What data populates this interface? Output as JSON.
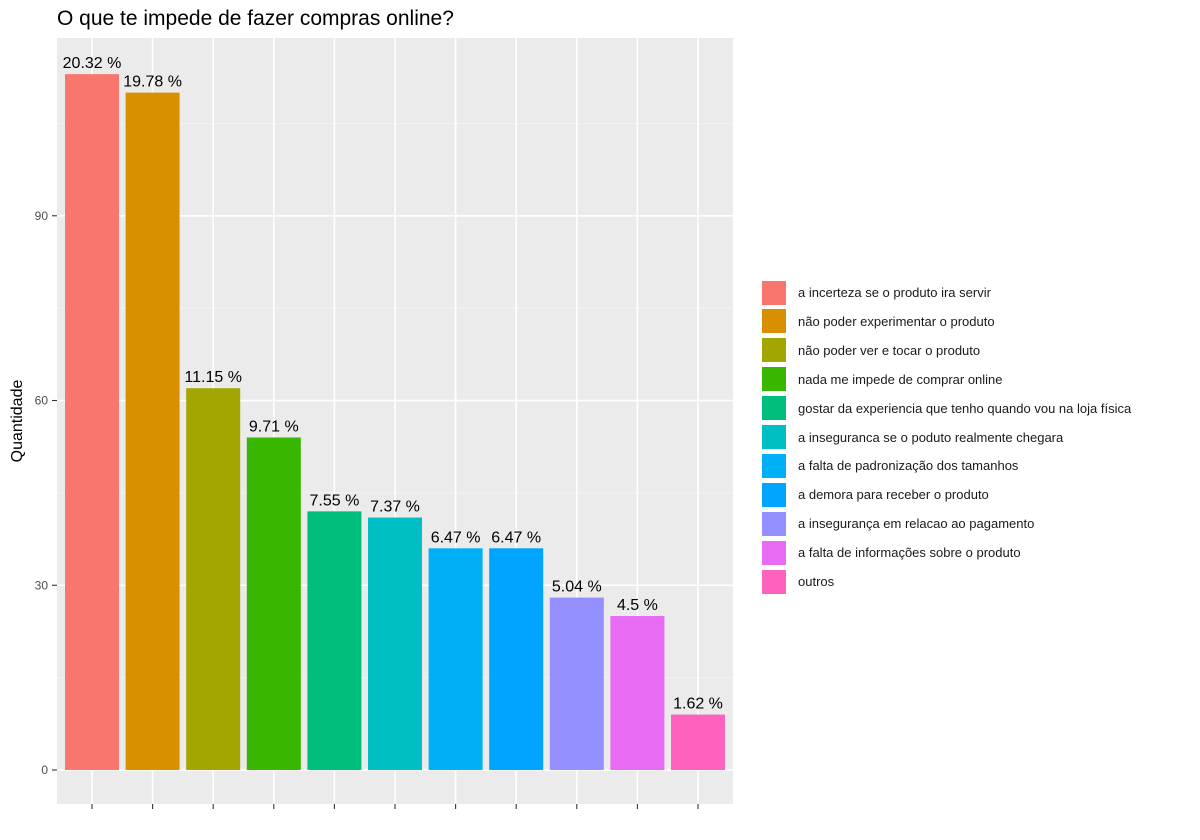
{
  "chart_data": {
    "type": "bar",
    "title": "O que te impede de fazer compras online?",
    "xlabel": "",
    "ylabel": "Quantidade",
    "ylim": [
      0,
      120
    ],
    "yticks": [
      0,
      30,
      60,
      90
    ],
    "grid": true,
    "legend_position": "right",
    "categories": [
      "a incerteza se o produto ira servir",
      "não poder experimentar o produto",
      "não poder ver e tocar o produto",
      "nada me impede de comprar online",
      "gostar da experiencia que tenho quando vou na loja física",
      "a inseguranca se o poduto realmente chegara",
      "a falta de padronização dos tamanhos",
      "a demora para receber o produto",
      "a insegurança em relacao ao pagamento",
      "a falta de informações sobre o produto",
      "outros"
    ],
    "values": [
      113,
      110,
      62,
      54,
      42,
      41,
      36,
      36,
      28,
      25,
      9
    ],
    "labels": [
      "20.32 %",
      "19.78 %",
      "11.15 %",
      "9.71 %",
      "7.55 %",
      "7.37 %",
      "6.47 %",
      "6.47 %",
      "5.04 %",
      "4.5 %",
      "1.62 %"
    ],
    "colors": [
      "#F8766D",
      "#D89000",
      "#A3A500",
      "#39B600",
      "#00BF7D",
      "#00BFC4",
      "#00B0F6",
      "#00A5FF",
      "#9590FF",
      "#E76BF3",
      "#FF62BC"
    ]
  }
}
